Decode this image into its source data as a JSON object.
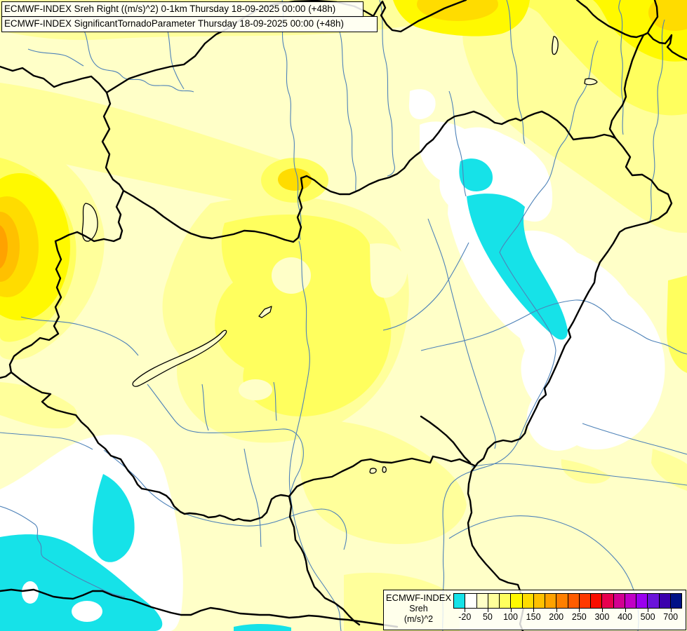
{
  "header": {
    "line1": "ECMWF-INDEX Sreh Right ((m/s)^2) 0-1km Thursday 18-09-2025 00:00 (+48h)",
    "line2": "ECMWF-INDEX SignificantTornadoParameter Thursday 18-09-2025 00:00 (+48h)"
  },
  "legend": {
    "title_line1": "ECMWF-INDEX",
    "title_line2": "Sreh",
    "title_line3": "(m/s)^2",
    "cells": [
      "#16E2E8",
      "#FFFFFF",
      "#FFFFC8",
      "#FFFF9B",
      "#FFFF5E",
      "#FFF900",
      "#FFDC00",
      "#FFC000",
      "#FFA200",
      "#FF7F00",
      "#FF5C00",
      "#FF3800",
      "#F90D00",
      "#E7004F",
      "#D20092",
      "#C100C6",
      "#9B00F0",
      "#6B14DA",
      "#3B00AE",
      "#001187"
    ],
    "ticks": [
      {
        "label": "-20",
        "boundary": 1
      },
      {
        "label": "50",
        "boundary": 3
      },
      {
        "label": "100",
        "boundary": 5
      },
      {
        "label": "150",
        "boundary": 7
      },
      {
        "label": "200",
        "boundary": 9
      },
      {
        "label": "250",
        "boundary": 11
      },
      {
        "label": "300",
        "boundary": 13
      },
      {
        "label": "400",
        "boundary": 15
      },
      {
        "label": "500",
        "boundary": 17
      },
      {
        "label": "700",
        "boundary": 19
      }
    ]
  },
  "map": {
    "palette": {
      "base": "#FFFFC8",
      "y2": "#FFFF9B",
      "y3": "#FFFF5E",
      "y4": "#FFF900",
      "gold": "#FFDC00",
      "orange1": "#FFC000",
      "orange2": "#FFA200",
      "white": "#FFFFFF",
      "cyan": "#16E2E8",
      "river": "#4E82B8",
      "border": "#000000"
    }
  }
}
